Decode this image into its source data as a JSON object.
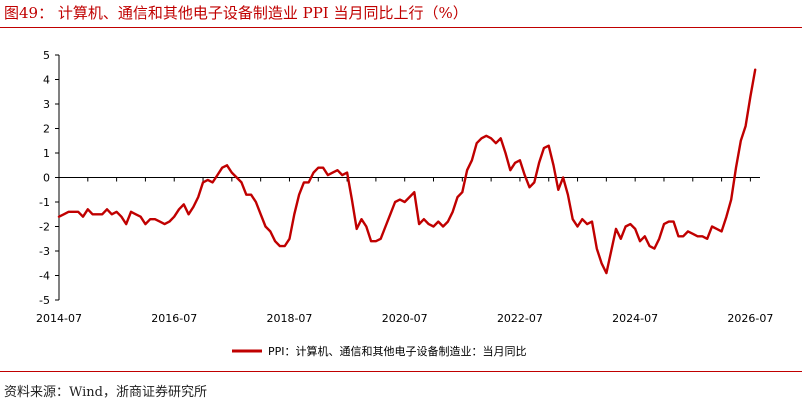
{
  "figure_title": "图49： 计算机、通信和其他电子设备制造业 PPI 当月同比上行（%）",
  "source": "资料来源：Wind，浙商证券研究所",
  "colors": {
    "accent": "#c00000",
    "series": "#c00000",
    "axis": "#000000"
  },
  "chart_data": {
    "type": "line",
    "title": "",
    "xlabel": "",
    "ylabel": "",
    "ylim": [
      -5,
      5
    ],
    "yticks": [
      5,
      4,
      3,
      2,
      1,
      0,
      -1,
      -2,
      -3,
      -4,
      -5
    ],
    "xlim": [
      "2014-07",
      "2026-09"
    ],
    "xticks": [
      "2014-07",
      "2016-07",
      "2018-07",
      "2020-07",
      "2022-07",
      "2024-07",
      "2026-07"
    ],
    "legend_position": "bottom-center",
    "grid": false,
    "series": [
      {
        "name": "PPI：计算机、通信和其他电子设备制造业：当月同比",
        "color": "#c00000",
        "points": [
          [
            "2014-07",
            -1.6
          ],
          [
            "2014-08",
            -1.5
          ],
          [
            "2014-09",
            -1.4
          ],
          [
            "2014-10",
            -1.4
          ],
          [
            "2014-11",
            -1.4
          ],
          [
            "2014-12",
            -1.6
          ],
          [
            "2015-01",
            -1.3
          ],
          [
            "2015-02",
            -1.5
          ],
          [
            "2015-03",
            -1.5
          ],
          [
            "2015-04",
            -1.5
          ],
          [
            "2015-05",
            -1.3
          ],
          [
            "2015-06",
            -1.5
          ],
          [
            "2015-07",
            -1.4
          ],
          [
            "2015-08",
            -1.6
          ],
          [
            "2015-09",
            -1.9
          ],
          [
            "2015-10",
            -1.4
          ],
          [
            "2015-11",
            -1.5
          ],
          [
            "2015-12",
            -1.6
          ],
          [
            "2016-01",
            -1.9
          ],
          [
            "2016-02",
            -1.7
          ],
          [
            "2016-03",
            -1.7
          ],
          [
            "2016-04",
            -1.8
          ],
          [
            "2016-05",
            -1.9
          ],
          [
            "2016-06",
            -1.8
          ],
          [
            "2016-07",
            -1.6
          ],
          [
            "2016-08",
            -1.3
          ],
          [
            "2016-09",
            -1.1
          ],
          [
            "2016-10",
            -1.5
          ],
          [
            "2016-11",
            -1.2
          ],
          [
            "2016-12",
            -0.8
          ],
          [
            "2017-01",
            -0.2
          ],
          [
            "2017-02",
            -0.1
          ],
          [
            "2017-03",
            -0.2
          ],
          [
            "2017-04",
            0.1
          ],
          [
            "2017-05",
            0.4
          ],
          [
            "2017-06",
            0.5
          ],
          [
            "2017-07",
            0.2
          ],
          [
            "2017-08",
            0.0
          ],
          [
            "2017-09",
            -0.2
          ],
          [
            "2017-10",
            -0.7
          ],
          [
            "2017-11",
            -0.7
          ],
          [
            "2017-12",
            -1.0
          ],
          [
            "2018-01",
            -1.5
          ],
          [
            "2018-02",
            -2.0
          ],
          [
            "2018-03",
            -2.2
          ],
          [
            "2018-04",
            -2.6
          ],
          [
            "2018-05",
            -2.8
          ],
          [
            "2018-06",
            -2.8
          ],
          [
            "2018-07",
            -2.5
          ],
          [
            "2018-08",
            -1.5
          ],
          [
            "2018-09",
            -0.7
          ],
          [
            "2018-10",
            -0.2
          ],
          [
            "2018-11",
            -0.2
          ],
          [
            "2018-12",
            0.2
          ],
          [
            "2019-01",
            0.4
          ],
          [
            "2019-02",
            0.4
          ],
          [
            "2019-03",
            0.1
          ],
          [
            "2019-04",
            0.2
          ],
          [
            "2019-05",
            0.3
          ],
          [
            "2019-06",
            0.1
          ],
          [
            "2019-07",
            0.2
          ],
          [
            "2019-08",
            -0.9
          ],
          [
            "2019-09",
            -2.1
          ],
          [
            "2019-10",
            -1.7
          ],
          [
            "2019-11",
            -2.0
          ],
          [
            "2019-12",
            -2.6
          ],
          [
            "2020-01",
            -2.6
          ],
          [
            "2020-02",
            -2.5
          ],
          [
            "2020-03",
            -2.0
          ],
          [
            "2020-04",
            -1.5
          ],
          [
            "2020-05",
            -1.0
          ],
          [
            "2020-06",
            -0.9
          ],
          [
            "2020-07",
            -1.0
          ],
          [
            "2020-08",
            -0.8
          ],
          [
            "2020-09",
            -0.6
          ],
          [
            "2020-10",
            -1.9
          ],
          [
            "2020-11",
            -1.7
          ],
          [
            "2020-12",
            -1.9
          ],
          [
            "2021-01",
            -2.0
          ],
          [
            "2021-02",
            -1.8
          ],
          [
            "2021-03",
            -2.0
          ],
          [
            "2021-04",
            -1.8
          ],
          [
            "2021-05",
            -1.4
          ],
          [
            "2021-06",
            -0.8
          ],
          [
            "2021-07",
            -0.6
          ],
          [
            "2021-08",
            0.3
          ],
          [
            "2021-09",
            0.7
          ],
          [
            "2021-10",
            1.4
          ],
          [
            "2021-11",
            1.6
          ],
          [
            "2021-12",
            1.7
          ],
          [
            "2022-01",
            1.6
          ],
          [
            "2022-02",
            1.4
          ],
          [
            "2022-03",
            1.6
          ],
          [
            "2022-04",
            1.0
          ],
          [
            "2022-05",
            0.3
          ],
          [
            "2022-06",
            0.6
          ],
          [
            "2022-07",
            0.7
          ],
          [
            "2022-08",
            0.1
          ],
          [
            "2022-09",
            -0.4
          ],
          [
            "2022-10",
            -0.2
          ],
          [
            "2022-11",
            0.6
          ],
          [
            "2022-12",
            1.2
          ],
          [
            "2023-01",
            1.3
          ],
          [
            "2023-02",
            0.5
          ],
          [
            "2023-03",
            -0.5
          ],
          [
            "2023-04",
            0.0
          ],
          [
            "2023-05",
            -0.7
          ],
          [
            "2023-06",
            -1.7
          ],
          [
            "2023-07",
            -2.0
          ],
          [
            "2023-08",
            -1.7
          ],
          [
            "2023-09",
            -1.9
          ],
          [
            "2023-10",
            -1.8
          ],
          [
            "2023-11",
            -2.9
          ],
          [
            "2023-12",
            -3.5
          ],
          [
            "2024-01",
            -3.9
          ],
          [
            "2024-02",
            -3.0
          ],
          [
            "2024-03",
            -2.1
          ],
          [
            "2024-04",
            -2.5
          ],
          [
            "2024-05",
            -2.0
          ],
          [
            "2024-06",
            -1.9
          ],
          [
            "2024-07",
            -2.1
          ],
          [
            "2024-08",
            -2.6
          ],
          [
            "2024-09",
            -2.4
          ],
          [
            "2024-10",
            -2.8
          ],
          [
            "2024-11",
            -2.9
          ],
          [
            "2024-12",
            -2.5
          ],
          [
            "2025-01",
            -1.9
          ],
          [
            "2025-02",
            -1.8
          ],
          [
            "2025-03",
            -1.8
          ],
          [
            "2025-04",
            -2.4
          ],
          [
            "2025-05",
            -2.4
          ],
          [
            "2025-06",
            -2.2
          ],
          [
            "2025-07",
            -2.3
          ],
          [
            "2025-08",
            -2.4
          ],
          [
            "2025-09",
            -2.4
          ],
          [
            "2025-10",
            -2.5
          ],
          [
            "2025-11",
            -2.0
          ],
          [
            "2025-12",
            -2.1
          ],
          [
            "2026-01",
            -2.2
          ],
          [
            "2026-02",
            -1.6
          ],
          [
            "2026-03",
            -0.9
          ],
          [
            "2026-04",
            0.4
          ],
          [
            "2026-05",
            1.5
          ],
          [
            "2026-06",
            2.1
          ],
          [
            "2026-07",
            3.3
          ],
          [
            "2026-08",
            4.4
          ]
        ]
      }
    ]
  }
}
